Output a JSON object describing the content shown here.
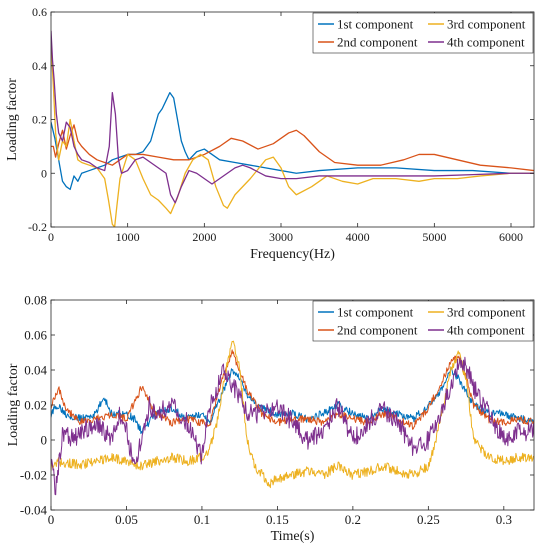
{
  "chart_data": [
    {
      "type": "line",
      "xlabel": "Frequency(Hz)",
      "ylabel": "Loading factor",
      "xlim": [
        0,
        6300
      ],
      "ylim": [
        -0.2,
        0.6
      ],
      "xticks": [
        0,
        1000,
        2000,
        3000,
        4000,
        5000,
        6000
      ],
      "yticks": [
        -0.2,
        0,
        0.2,
        0.4,
        0.6
      ],
      "xtick_labels": [
        "0",
        "1000",
        "2000",
        "3000",
        "4000",
        "5000",
        "6000"
      ],
      "ytick_labels": [
        "-0.2",
        "0",
        "0.2",
        "0.4",
        "0.6"
      ],
      "grid": false,
      "legend_position": "top-right",
      "series": [
        {
          "name": "1st component",
          "color": "#0072BD",
          "x": [
            0,
            50,
            100,
            150,
            200,
            250,
            300,
            350,
            400,
            500,
            600,
            700,
            800,
            900,
            1000,
            1100,
            1200,
            1300,
            1350,
            1400,
            1450,
            1500,
            1550,
            1600,
            1650,
            1700,
            1750,
            1800,
            1900,
            2000,
            2100,
            2200,
            2400,
            2600,
            2800,
            3000,
            3200,
            3500,
            4000,
            4500,
            5000,
            5500,
            6000,
            6300
          ],
          "values": [
            0.19,
            0.13,
            0.05,
            -0.03,
            -0.05,
            -0.06,
            -0.01,
            -0.03,
            0.0,
            0.01,
            0.02,
            0.03,
            0.05,
            0.06,
            0.07,
            0.07,
            0.08,
            0.12,
            0.17,
            0.22,
            0.24,
            0.27,
            0.3,
            0.28,
            0.2,
            0.12,
            0.08,
            0.05,
            0.08,
            0.09,
            0.07,
            0.05,
            0.04,
            0.03,
            0.02,
            0.01,
            0.0,
            0.01,
            0.02,
            0.02,
            0.01,
            0.01,
            0.0,
            0.0
          ]
        },
        {
          "name": "2nd component",
          "color": "#D95319",
          "x": [
            0,
            30,
            60,
            100,
            150,
            200,
            250,
            300,
            350,
            400,
            500,
            600,
            700,
            800,
            900,
            1000,
            1200,
            1400,
            1600,
            1800,
            2000,
            2200,
            2350,
            2500,
            2700,
            2900,
            3100,
            3200,
            3300,
            3500,
            3700,
            4000,
            4300,
            4600,
            4800,
            5000,
            5300,
            5600,
            6000,
            6300
          ],
          "values": [
            0.1,
            0.1,
            0.06,
            0.11,
            0.16,
            0.09,
            0.14,
            0.18,
            0.12,
            0.1,
            0.07,
            0.05,
            0.04,
            0.03,
            0.05,
            0.07,
            0.07,
            0.06,
            0.05,
            0.05,
            0.07,
            0.1,
            0.13,
            0.12,
            0.09,
            0.11,
            0.15,
            0.16,
            0.14,
            0.08,
            0.04,
            0.03,
            0.03,
            0.05,
            0.07,
            0.07,
            0.05,
            0.03,
            0.02,
            0.01
          ]
        },
        {
          "name": "3rd component",
          "color": "#EDB120",
          "x": [
            0,
            30,
            60,
            100,
            150,
            200,
            250,
            300,
            350,
            400,
            500,
            600,
            700,
            750,
            800,
            830,
            860,
            900,
            1000,
            1100,
            1200,
            1300,
            1400,
            1500,
            1560,
            1650,
            1750,
            1850,
            1950,
            2050,
            2150,
            2250,
            2300,
            2400,
            2600,
            2800,
            2900,
            3000,
            3100,
            3200,
            3400,
            3600,
            3800,
            4000,
            4200,
            4500,
            4800,
            5000,
            5300,
            5600,
            6000,
            6300
          ],
          "values": [
            0.48,
            0.33,
            0.15,
            0.05,
            0.12,
            0.1,
            0.2,
            0.12,
            0.05,
            0.04,
            0.03,
            0.02,
            -0.02,
            -0.1,
            -0.19,
            -0.2,
            -0.12,
            -0.02,
            0.07,
            0.05,
            -0.02,
            -0.08,
            -0.1,
            -0.13,
            -0.15,
            -0.09,
            0.0,
            0.05,
            0.07,
            0.05,
            -0.05,
            -0.12,
            -0.13,
            -0.08,
            -0.02,
            0.05,
            0.06,
            0.02,
            -0.05,
            -0.08,
            -0.05,
            -0.01,
            -0.03,
            -0.04,
            -0.02,
            -0.02,
            -0.03,
            -0.02,
            -0.02,
            -0.01,
            0.0,
            0.0
          ]
        },
        {
          "name": "4th component",
          "color": "#7E2F8E",
          "x": [
            0,
            20,
            40,
            70,
            100,
            150,
            200,
            250,
            300,
            350,
            400,
            500,
            600,
            700,
            760,
            800,
            840,
            880,
            920,
            1000,
            1100,
            1200,
            1300,
            1400,
            1500,
            1560,
            1620,
            1700,
            1800,
            1900,
            2000,
            2100,
            2200,
            2300,
            2400,
            2500,
            2600,
            2800,
            3000,
            3200,
            3500,
            4000,
            4500,
            5000,
            5500,
            6000,
            6300
          ],
          "values": [
            0.53,
            0.42,
            0.35,
            0.22,
            0.15,
            0.12,
            0.19,
            0.17,
            0.1,
            0.07,
            0.05,
            0.04,
            0.02,
            0.01,
            0.1,
            0.3,
            0.22,
            0.05,
            0.0,
            0.01,
            0.05,
            0.06,
            0.04,
            0.02,
            0.0,
            -0.08,
            -0.11,
            -0.05,
            0.01,
            0.0,
            -0.02,
            -0.04,
            -0.02,
            0.0,
            0.02,
            0.03,
            0.02,
            -0.01,
            -0.02,
            -0.02,
            -0.01,
            -0.01,
            -0.01,
            -0.01,
            -0.005,
            0.0,
            0.0
          ]
        }
      ]
    },
    {
      "type": "line",
      "xlabel": "Time(s)",
      "ylabel": "Loading factor",
      "xlim": [
        0,
        0.32
      ],
      "ylim": [
        -0.04,
        0.08
      ],
      "xticks": [
        0,
        0.05,
        0.1,
        0.15,
        0.2,
        0.25,
        0.3
      ],
      "yticks": [
        -0.04,
        -0.02,
        0,
        0.02,
        0.04,
        0.06,
        0.08
      ],
      "xtick_labels": [
        "0",
        "0.05",
        "0.1",
        "0.15",
        "0.2",
        "0.25",
        "0.3"
      ],
      "ytick_labels": [
        "-0.04",
        "-0.02",
        "0",
        "0.02",
        "0.04",
        "0.06",
        "0.08"
      ],
      "grid": false,
      "legend_position": "top-right",
      "series": [
        {
          "name": "1st component",
          "color": "#0072BD",
          "x": [
            0,
            0.005,
            0.01,
            0.02,
            0.03,
            0.035,
            0.04,
            0.05,
            0.055,
            0.06,
            0.07,
            0.08,
            0.09,
            0.1,
            0.105,
            0.11,
            0.115,
            0.12,
            0.125,
            0.13,
            0.14,
            0.15,
            0.16,
            0.17,
            0.18,
            0.19,
            0.2,
            0.21,
            0.22,
            0.23,
            0.24,
            0.25,
            0.26,
            0.265,
            0.27,
            0.28,
            0.29,
            0.3,
            0.31,
            0.32
          ],
          "values": [
            0.015,
            0.02,
            0.015,
            0.012,
            0.015,
            0.025,
            0.015,
            0.015,
            0.012,
            0.005,
            0.015,
            0.018,
            0.012,
            0.015,
            0.01,
            0.02,
            0.03,
            0.04,
            0.035,
            0.025,
            0.018,
            0.015,
            0.015,
            0.012,
            0.015,
            0.02,
            0.015,
            0.012,
            0.018,
            0.015,
            0.012,
            0.02,
            0.03,
            0.04,
            0.035,
            0.02,
            0.015,
            0.015,
            0.012,
            0.012
          ]
        },
        {
          "name": "2nd component",
          "color": "#D95319",
          "x": [
            0,
            0.005,
            0.01,
            0.02,
            0.03,
            0.04,
            0.05,
            0.06,
            0.07,
            0.08,
            0.09,
            0.1,
            0.105,
            0.11,
            0.115,
            0.12,
            0.125,
            0.13,
            0.14,
            0.15,
            0.16,
            0.17,
            0.18,
            0.19,
            0.2,
            0.21,
            0.22,
            0.23,
            0.24,
            0.25,
            0.26,
            0.265,
            0.27,
            0.275,
            0.28,
            0.29,
            0.3,
            0.31,
            0.32
          ],
          "values": [
            0.02,
            0.03,
            0.018,
            0.01,
            0.012,
            0.015,
            0.012,
            0.03,
            0.015,
            0.01,
            0.012,
            0.01,
            0.008,
            0.025,
            0.038,
            0.05,
            0.04,
            0.028,
            0.015,
            0.01,
            0.012,
            0.012,
            0.01,
            0.015,
            0.012,
            0.01,
            0.015,
            0.012,
            0.008,
            0.018,
            0.035,
            0.045,
            0.048,
            0.035,
            0.02,
            0.012,
            0.01,
            0.012,
            0.01
          ]
        },
        {
          "name": "3rd component",
          "color": "#EDB120",
          "x": [
            0,
            0.005,
            0.01,
            0.02,
            0.03,
            0.04,
            0.05,
            0.06,
            0.07,
            0.08,
            0.09,
            0.1,
            0.105,
            0.11,
            0.115,
            0.12,
            0.125,
            0.13,
            0.135,
            0.14,
            0.145,
            0.15,
            0.16,
            0.17,
            0.18,
            0.19,
            0.2,
            0.21,
            0.22,
            0.23,
            0.24,
            0.25,
            0.255,
            0.26,
            0.265,
            0.27,
            0.275,
            0.28,
            0.29,
            0.3,
            0.31,
            0.32
          ],
          "values": [
            -0.015,
            -0.012,
            -0.013,
            -0.014,
            -0.012,
            -0.01,
            -0.012,
            -0.015,
            -0.012,
            -0.01,
            -0.012,
            -0.01,
            -0.005,
            0.01,
            0.035,
            0.058,
            0.04,
            0.0,
            -0.015,
            -0.02,
            -0.025,
            -0.022,
            -0.02,
            -0.018,
            -0.02,
            -0.015,
            -0.02,
            -0.018,
            -0.015,
            -0.018,
            -0.02,
            -0.015,
            0.0,
            0.02,
            0.04,
            0.05,
            0.035,
            0.0,
            -0.01,
            -0.012,
            -0.01,
            -0.01
          ]
        },
        {
          "name": "4th component",
          "color": "#7E2F8E",
          "x": [
            0,
            0.003,
            0.008,
            0.015,
            0.02,
            0.03,
            0.04,
            0.045,
            0.05,
            0.055,
            0.06,
            0.065,
            0.07,
            0.08,
            0.09,
            0.1,
            0.105,
            0.11,
            0.115,
            0.12,
            0.125,
            0.13,
            0.14,
            0.15,
            0.16,
            0.17,
            0.18,
            0.19,
            0.2,
            0.21,
            0.22,
            0.23,
            0.24,
            0.25,
            0.26,
            0.27,
            0.275,
            0.28,
            0.29,
            0.3,
            0.31,
            0.32
          ],
          "values": [
            -0.01,
            -0.03,
            0.005,
            0.0,
            0.005,
            0.01,
            0.0,
            0.015,
            0.005,
            -0.015,
            0.0,
            0.02,
            0.015,
            0.02,
            0.01,
            -0.01,
            0.02,
            0.03,
            0.04,
            0.032,
            0.025,
            0.015,
            0.015,
            0.02,
            0.01,
            0.0,
            0.005,
            0.02,
            0.0,
            0.01,
            0.018,
            0.01,
            -0.005,
            0.0,
            0.02,
            0.045,
            0.042,
            0.03,
            0.015,
            0.0,
            0.005,
            0.005
          ]
        }
      ]
    }
  ]
}
